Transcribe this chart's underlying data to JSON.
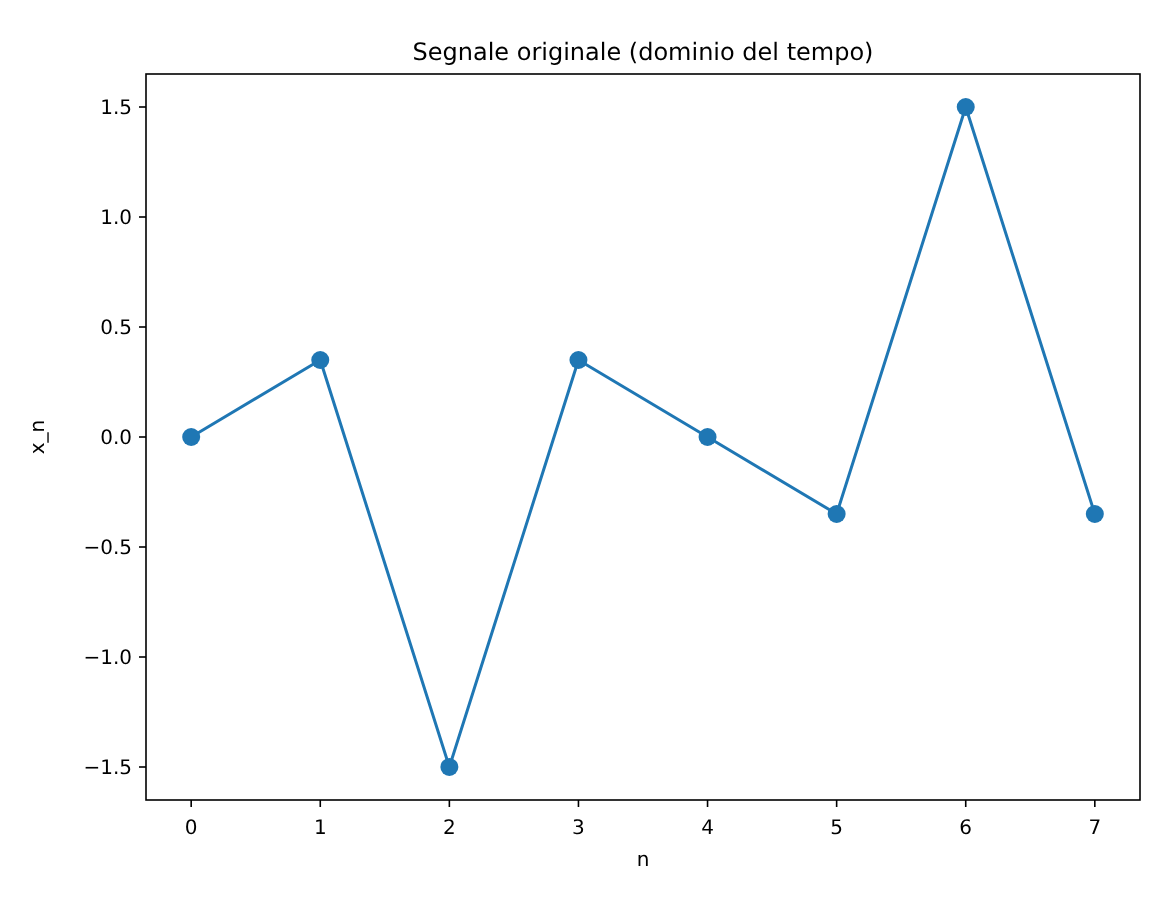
{
  "chart_data": {
    "type": "line",
    "title": "Segnale originale (dominio del tempo)",
    "xlabel": "n",
    "ylabel": "x_n",
    "x": [
      0,
      1,
      2,
      3,
      4,
      5,
      6,
      7
    ],
    "series": [
      {
        "color": "#1f77b4",
        "values": [
          0,
          0.35,
          -1.5,
          0.35,
          0,
          -0.35,
          1.5,
          -0.35
        ]
      }
    ],
    "xlim": [
      -0.35,
      7.35
    ],
    "ylim": [
      -1.65,
      1.65
    ],
    "xticks": [
      0,
      1,
      2,
      3,
      4,
      5,
      6,
      7
    ],
    "yticks": [
      {
        "value": -1.5,
        "label": "−1.5"
      },
      {
        "value": -1,
        "label": "−1.0"
      },
      {
        "value": -0.5,
        "label": "−0.5"
      },
      {
        "value": 0,
        "label": "0.0"
      },
      {
        "value": 0.5,
        "label": "0.5"
      },
      {
        "value": 1,
        "label": "1.0"
      },
      {
        "value": 1.5,
        "label": "1.5"
      }
    ],
    "marker": "circle",
    "line_style": "solid",
    "grid": false
  }
}
